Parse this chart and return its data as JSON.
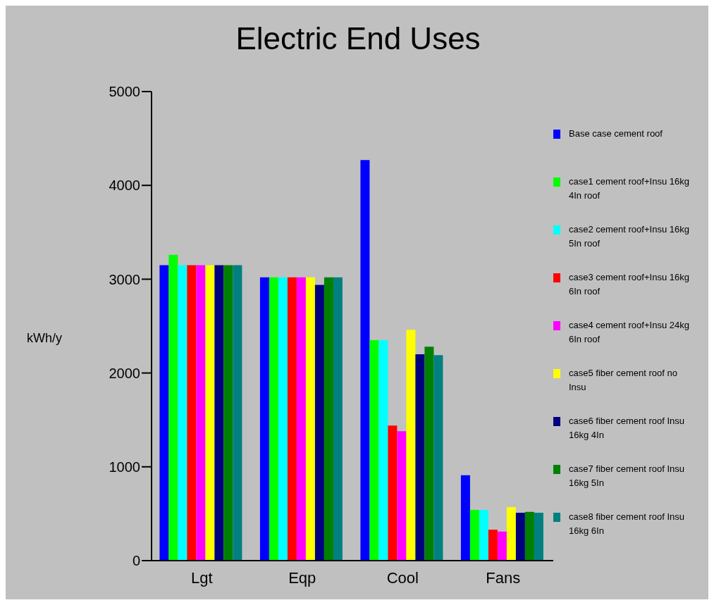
{
  "chart_data": {
    "type": "bar",
    "title": "Electric End Uses",
    "ylabel": "kWh/y",
    "categories": [
      "Lgt",
      "Eqp",
      "Cool",
      "Fans"
    ],
    "series": [
      {
        "name": "Base case cement roof",
        "color": "#0000ff",
        "values": [
          3150,
          3020,
          4270,
          910
        ]
      },
      {
        "name": "case1 cement roof+Insu 16kg 4In roof",
        "color": "#00ff00",
        "values": [
          3260,
          3020,
          2350,
          540
        ]
      },
      {
        "name": "case2 cement roof+Insu 16kg 5In roof",
        "color": "#00ffff",
        "values": [
          3150,
          3020,
          2350,
          540
        ]
      },
      {
        "name": "case3 cement roof+Insu 16kg 6In roof",
        "color": "#ff0000",
        "values": [
          3150,
          3020,
          1440,
          330
        ]
      },
      {
        "name": "case4 cement roof+Insu 24kg 6In roof",
        "color": "#ff00ff",
        "values": [
          3150,
          3020,
          1380,
          310
        ]
      },
      {
        "name": "case5 fiber cement roof no Insu",
        "color": "#ffff00",
        "values": [
          3150,
          3020,
          2460,
          570
        ]
      },
      {
        "name": "case6 fiber cement roof Insu 16kg 4In",
        "color": "#000080",
        "values": [
          3150,
          2940,
          2200,
          510
        ]
      },
      {
        "name": "case7 fiber cement roof Insu 16kg 5In",
        "color": "#008000",
        "values": [
          3150,
          3020,
          2280,
          520
        ]
      },
      {
        "name": "case8 fiber cement roof Insu 16kg 6In",
        "color": "#008080",
        "values": [
          3150,
          3020,
          2190,
          510
        ]
      }
    ],
    "ylim": [
      0,
      5000
    ],
    "yticks": [
      0,
      1000,
      2000,
      3000,
      4000,
      5000
    ],
    "grid": false,
    "legend": "right"
  }
}
